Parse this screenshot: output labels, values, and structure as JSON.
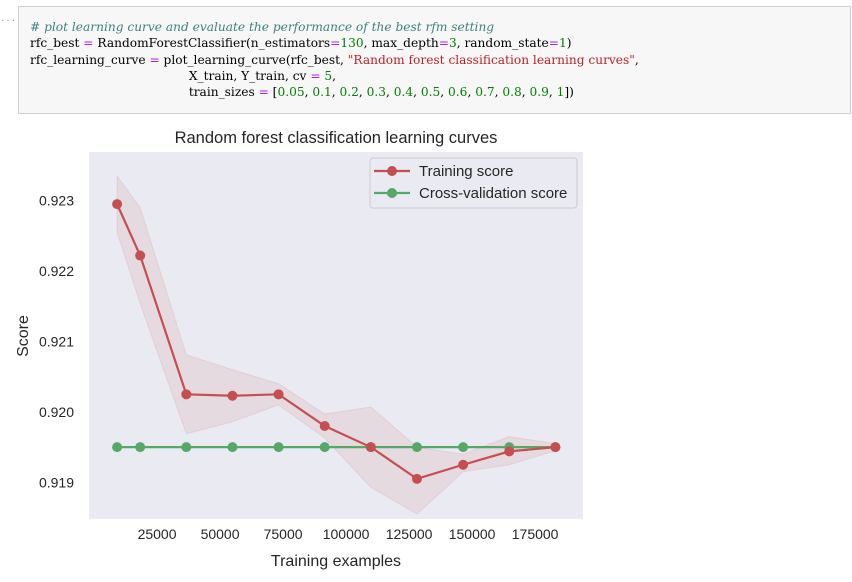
{
  "prompt_marker": "...",
  "code_lines": [
    [
      {
        "t": "# plot learning curve and evaluate the performance of the best rfm setting",
        "c": "cm"
      }
    ],
    [
      {
        "t": "rfc_best "
      },
      {
        "t": "=",
        "c": "op"
      },
      {
        "t": " RandomForestClassifier(n_estimators"
      },
      {
        "t": "=",
        "c": "op"
      },
      {
        "t": "130",
        "c": "nu"
      },
      {
        "t": ", max_depth"
      },
      {
        "t": "=",
        "c": "op"
      },
      {
        "t": "3",
        "c": "nu"
      },
      {
        "t": ", random_state"
      },
      {
        "t": "=",
        "c": "op"
      },
      {
        "t": "1",
        "c": "nu"
      },
      {
        "t": ")"
      }
    ],
    [
      {
        "t": "rfc_learning_curve "
      },
      {
        "t": "=",
        "c": "op"
      },
      {
        "t": " plot_learning_curve(rfc_best, "
      },
      {
        "t": "\"Random forest classification learning curves\"",
        "c": "st"
      },
      {
        "t": ","
      }
    ],
    [
      {
        "t": "                                         X_train, Y_train, cv "
      },
      {
        "t": "=",
        "c": "op"
      },
      {
        "t": " "
      },
      {
        "t": "5",
        "c": "nu"
      },
      {
        "t": ","
      }
    ],
    [
      {
        "t": "                                         train_sizes "
      },
      {
        "t": "=",
        "c": "op"
      },
      {
        "t": " ["
      },
      {
        "t": "0.05",
        "c": "nu"
      },
      {
        "t": ", "
      },
      {
        "t": "0.1",
        "c": "nu"
      },
      {
        "t": ", "
      },
      {
        "t": "0.2",
        "c": "nu"
      },
      {
        "t": ", "
      },
      {
        "t": "0.3",
        "c": "nu"
      },
      {
        "t": ", "
      },
      {
        "t": "0.4",
        "c": "nu"
      },
      {
        "t": ", "
      },
      {
        "t": "0.5",
        "c": "nu"
      },
      {
        "t": ", "
      },
      {
        "t": "0.6",
        "c": "nu"
      },
      {
        "t": ", "
      },
      {
        "t": "0.7",
        "c": "nu"
      },
      {
        "t": ", "
      },
      {
        "t": "0.8",
        "c": "nu"
      },
      {
        "t": ", "
      },
      {
        "t": "0.9",
        "c": "nu"
      },
      {
        "t": ", "
      },
      {
        "t": "1",
        "c": "nu"
      },
      {
        "t": "])"
      }
    ]
  ],
  "chart_data": {
    "type": "line",
    "title": "Random forest classification learning curves",
    "xlabel": "Training examples",
    "ylabel": "Score",
    "xlim": [
      -2000,
      194000
    ],
    "ylim": [
      0.91848,
      0.92369
    ],
    "xticks": [
      25000,
      50000,
      75000,
      100000,
      125000,
      150000,
      175000
    ],
    "yticks": [
      0.919,
      0.92,
      0.921,
      0.922,
      0.923
    ],
    "grid": false,
    "legend_position": "upper right",
    "x": [
      9152,
      18305,
      36610,
      54915,
      73220,
      91525,
      109830,
      128135,
      146440,
      164745,
      183050
    ],
    "series": [
      {
        "name": "Training score",
        "color": "#c44e52",
        "values": [
          0.92295,
          0.92222,
          0.92025,
          0.92023,
          0.92025,
          0.9198,
          0.9195,
          0.91905,
          0.91925,
          0.91944,
          0.9195
        ],
        "band_upper": [
          0.92335,
          0.9229,
          0.92081,
          0.9206,
          0.9204,
          0.91997,
          0.92007,
          0.9195,
          0.9194,
          0.91965,
          0.91955
        ],
        "band_lower": [
          0.92255,
          0.92154,
          0.91969,
          0.91986,
          0.9201,
          0.91963,
          0.91893,
          0.91855,
          0.91915,
          0.91925,
          0.91945
        ]
      },
      {
        "name": "Cross-validation score",
        "color": "#55a868",
        "values": [
          0.9195,
          0.9195,
          0.9195,
          0.9195,
          0.9195,
          0.9195,
          0.9195,
          0.9195,
          0.9195,
          0.9195,
          0.9195
        ]
      }
    ]
  }
}
